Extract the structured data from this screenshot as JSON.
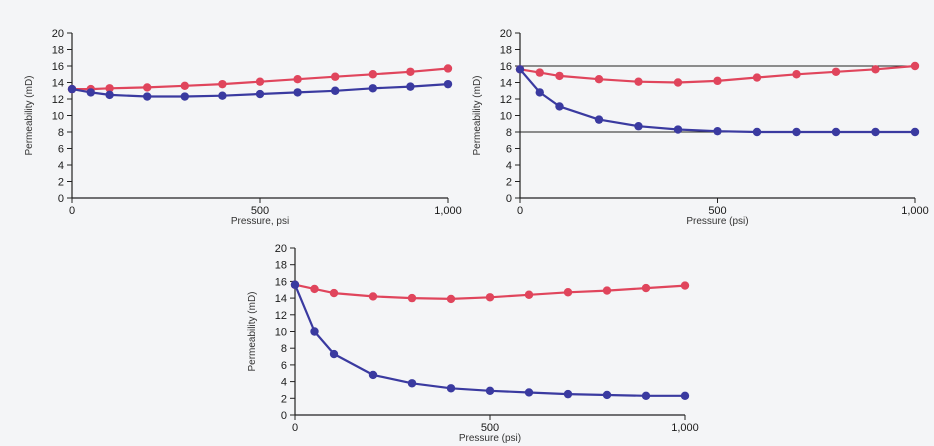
{
  "colors": {
    "red_series": "#e0455c",
    "blue_series": "#3a3aa0",
    "background": "#f4f5f7",
    "axis": "#222222"
  },
  "chart_data": [
    {
      "type": "line",
      "xlabel": "Pressure, psi",
      "ylabel": "Permeability (mD)",
      "xlim": [
        0,
        1000
      ],
      "ylim": [
        0,
        20
      ],
      "x_ticks": [
        "0",
        "500",
        "1,000"
      ],
      "y_ticks": [
        "0",
        "2",
        "4",
        "6",
        "8",
        "10",
        "12",
        "14",
        "16",
        "18",
        "20"
      ],
      "series": [
        {
          "color": "red",
          "x": [
            0,
            50,
            100,
            200,
            300,
            400,
            500,
            600,
            700,
            800,
            900,
            1000
          ],
          "values": [
            13.2,
            13.2,
            13.3,
            13.4,
            13.6,
            13.8,
            14.1,
            14.4,
            14.7,
            15.0,
            15.3,
            15.7
          ]
        },
        {
          "color": "blue",
          "x": [
            0,
            50,
            100,
            200,
            300,
            400,
            500,
            600,
            700,
            800,
            900,
            1000
          ],
          "values": [
            13.2,
            12.8,
            12.5,
            12.3,
            12.3,
            12.4,
            12.6,
            12.8,
            13.0,
            13.3,
            13.5,
            13.8
          ]
        }
      ]
    },
    {
      "type": "line",
      "xlabel": "Pressure (psi)",
      "ylabel": "Permeability (mD)",
      "xlim": [
        0,
        1000
      ],
      "ylim": [
        0,
        20
      ],
      "x_ticks": [
        "0",
        "500",
        "1,000"
      ],
      "y_ticks": [
        "0",
        "2",
        "4",
        "6",
        "8",
        "10",
        "12",
        "14",
        "16",
        "18",
        "20"
      ],
      "reference_lines": [
        16,
        8
      ],
      "series": [
        {
          "color": "red",
          "x": [
            0,
            50,
            100,
            200,
            300,
            400,
            500,
            600,
            700,
            800,
            900,
            1000
          ],
          "values": [
            15.6,
            15.2,
            14.8,
            14.4,
            14.1,
            14.0,
            14.2,
            14.6,
            15.0,
            15.3,
            15.6,
            16.0
          ]
        },
        {
          "color": "blue",
          "x": [
            0,
            50,
            100,
            200,
            300,
            400,
            500,
            600,
            700,
            800,
            900,
            1000
          ],
          "values": [
            15.6,
            12.8,
            11.1,
            9.5,
            8.7,
            8.3,
            8.1,
            8.0,
            8.0,
            8.0,
            8.0,
            8.0
          ]
        }
      ]
    },
    {
      "type": "line",
      "xlabel": "Pressure (psi)",
      "ylabel": "Permeability (mD)",
      "xlim": [
        0,
        1000
      ],
      "ylim": [
        0,
        20
      ],
      "x_ticks": [
        "0",
        "500",
        "1,000"
      ],
      "y_ticks": [
        "0",
        "2",
        "4",
        "6",
        "8",
        "10",
        "12",
        "14",
        "16",
        "18",
        "20"
      ],
      "series": [
        {
          "color": "red",
          "x": [
            0,
            50,
            100,
            200,
            300,
            400,
            500,
            600,
            700,
            800,
            900,
            1000
          ],
          "values": [
            15.6,
            15.1,
            14.6,
            14.2,
            14.0,
            13.9,
            14.1,
            14.4,
            14.7,
            14.9,
            15.2,
            15.5
          ]
        },
        {
          "color": "blue",
          "x": [
            0,
            50,
            100,
            200,
            300,
            400,
            500,
            600,
            700,
            800,
            900,
            1000
          ],
          "values": [
            15.6,
            10.0,
            7.3,
            4.8,
            3.8,
            3.2,
            2.9,
            2.7,
            2.5,
            2.4,
            2.3,
            2.3
          ]
        }
      ]
    }
  ]
}
